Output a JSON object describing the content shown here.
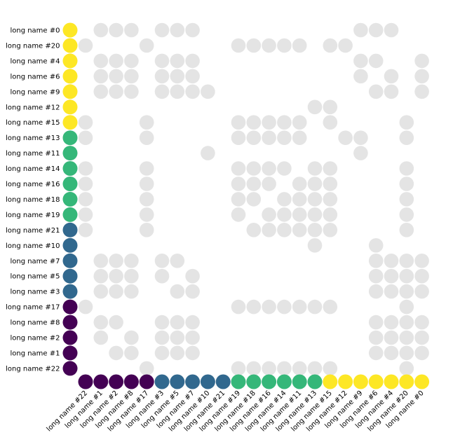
{
  "chart_data": {
    "type": "upset_matrix",
    "rows": [
      "long name #0",
      "long name #20",
      "long name #4",
      "long name #6",
      "long name #9",
      "long name #12",
      "long name #15",
      "long name #13",
      "long name #11",
      "long name #14",
      "long name #16",
      "long name #18",
      "long name #19",
      "long name #21",
      "long name #10",
      "long name #7",
      "long name #5",
      "long name #3",
      "long name #17",
      "long name #8",
      "long name #2",
      "long name #1",
      "long name #22"
    ],
    "columns": [
      "long name #22",
      "long name #1",
      "long name #2",
      "long name #8",
      "long name #17",
      "long name #3",
      "long name #5",
      "long name #7",
      "long name #10",
      "long name #21",
      "long name #19",
      "long name #18",
      "long name #16",
      "long name #14",
      "long name #11",
      "long name #13",
      "long name #15",
      "long name #12",
      "long name #9",
      "long name #6",
      "long name #4",
      "long name #20",
      "long name #0"
    ],
    "row_groups": [
      4,
      4,
      4,
      4,
      4,
      4,
      4,
      3,
      3,
      3,
      3,
      3,
      3,
      2,
      2,
      2,
      2,
      2,
      1,
      1,
      1,
      1,
      1
    ],
    "column_groups": [
      1,
      1,
      1,
      1,
      1,
      2,
      2,
      2,
      2,
      2,
      3,
      3,
      3,
      3,
      3,
      3,
      4,
      4,
      4,
      4,
      4,
      4,
      4
    ],
    "group_colors": {
      "1": "#440154",
      "2": "#31688e",
      "3": "#35b779",
      "4": "#fde725"
    },
    "background_dot_color": "#e4e4e4",
    "background_dots": [
      [
        1,
        2,
        3,
        5,
        6,
        7,
        18,
        19,
        20
      ],
      [
        0,
        4,
        10,
        11,
        12,
        13,
        14,
        16,
        17
      ],
      [
        1,
        2,
        3,
        5,
        6,
        7,
        18,
        19,
        22
      ],
      [
        1,
        2,
        3,
        5,
        6,
        7,
        18,
        20,
        22
      ],
      [
        1,
        2,
        3,
        5,
        6,
        7,
        8,
        19,
        20,
        22
      ],
      [
        15,
        16
      ],
      [
        0,
        4,
        10,
        11,
        12,
        13,
        14,
        16,
        21
      ],
      [
        0,
        4,
        10,
        11,
        12,
        13,
        14,
        17,
        18,
        21
      ],
      [
        8,
        18
      ],
      [
        0,
        4,
        10,
        11,
        12,
        13,
        15,
        16,
        21
      ],
      [
        0,
        4,
        10,
        11,
        12,
        14,
        15,
        16,
        21
      ],
      [
        0,
        4,
        10,
        11,
        13,
        14,
        15,
        16,
        21
      ],
      [
        0,
        4,
        10,
        12,
        13,
        14,
        15,
        16,
        21
      ],
      [
        0,
        4,
        11,
        12,
        13,
        14,
        15,
        16,
        21
      ],
      [
        15,
        19
      ],
      [
        1,
        2,
        3,
        5,
        6,
        19,
        20,
        21,
        22
      ],
      [
        1,
        2,
        3,
        5,
        7,
        19,
        20,
        21,
        22
      ],
      [
        1,
        2,
        3,
        6,
        7,
        19,
        20,
        21,
        22
      ],
      [
        0,
        10,
        11,
        12,
        13,
        14,
        15,
        16,
        21
      ],
      [
        1,
        2,
        5,
        6,
        7,
        19,
        20,
        21,
        22
      ],
      [
        1,
        3,
        5,
        6,
        7,
        19,
        20,
        21,
        22
      ],
      [
        2,
        3,
        5,
        6,
        7,
        19,
        20,
        21,
        22
      ],
      [
        4,
        10,
        11,
        12,
        13,
        14,
        15,
        16,
        21
      ]
    ]
  }
}
